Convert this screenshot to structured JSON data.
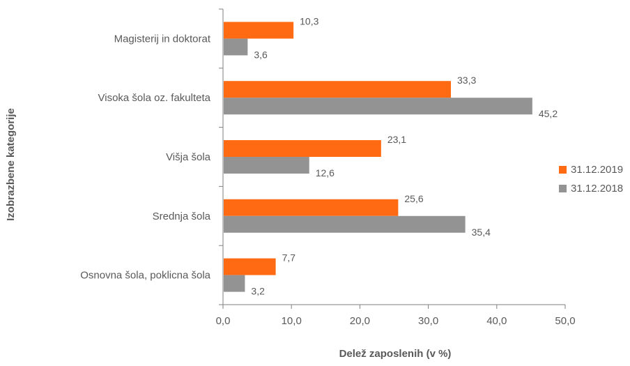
{
  "chart_data": {
    "type": "bar",
    "orientation": "horizontal",
    "xlabel": "Delež zaposlenih (v %)",
    "ylabel": "Izobrazbene kategorije",
    "xlim": [
      0,
      50
    ],
    "x_ticks": [
      "0,0",
      "10,0",
      "20,0",
      "30,0",
      "40,0",
      "50,0"
    ],
    "grid": false,
    "legend_position": "right",
    "categories": [
      "Magisterij in doktorat",
      "Visoka šola oz. fakulteta",
      "Višja šola",
      "Srednja šola",
      "Osnovna šola, poklicna šola"
    ],
    "series": [
      {
        "name": "31.12.2019",
        "color": "#ff6a13",
        "values": [
          10.3,
          33.3,
          23.1,
          25.6,
          7.7
        ],
        "labels": [
          "10,3",
          "33,3",
          "23,1",
          "25,6",
          "7,7"
        ]
      },
      {
        "name": "31.12.2018",
        "color": "#939393",
        "values": [
          3.6,
          45.2,
          12.6,
          35.4,
          3.2
        ],
        "labels": [
          "3,6",
          "45,2",
          "12,6",
          "35,4",
          "3,2"
        ]
      }
    ]
  }
}
